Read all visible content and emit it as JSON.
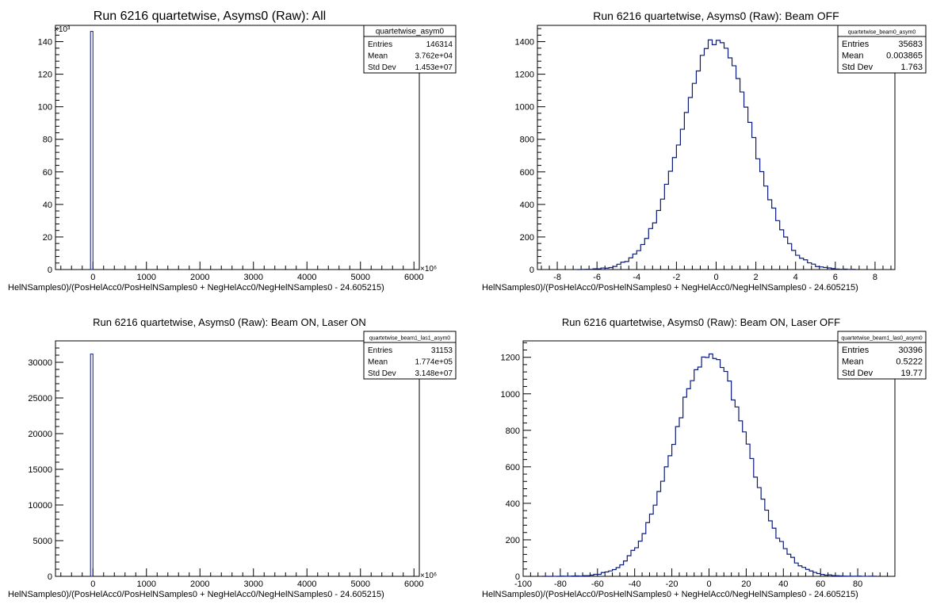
{
  "chart_data": [
    {
      "type": "histogram",
      "title": "Run 6216 quartetwise, Asyms0 (Raw): All",
      "xlabel": "HelNSamples0)/(PosHelAcc0/PosHelNSamples0 + NegHelAcc0/NegHelNSamples0 - 24.605215)",
      "ylabel": "",
      "x_multiplier": "×10⁶",
      "y_multiplier": "×10³",
      "xlim": [
        -700,
        6100
      ],
      "ylim": [
        0,
        150
      ],
      "x_ticks": [
        0,
        1000,
        2000,
        3000,
        4000,
        5000,
        6000
      ],
      "y_ticks": [
        0,
        20,
        40,
        60,
        80,
        100,
        120,
        140
      ],
      "bins": [
        {
          "x0": -45,
          "x1": 0,
          "y": 146.3
        }
      ],
      "stats": {
        "name": "quartetwise_asym0",
        "rows": [
          {
            "label": "Entries",
            "value": "146314"
          },
          {
            "label": "Mean",
            "value": "3.762e+04"
          },
          {
            "label": "Std Dev",
            "value": "1.453e+07"
          }
        ]
      }
    },
    {
      "type": "histogram",
      "title": "Run 6216 quartetwise, Asyms0 (Raw): Beam OFF",
      "xlabel": "HelNSamples0)/(PosHelAcc0/PosHelNSamples0 + NegHelAcc0/NegHelNSamples0 - 24.605215)",
      "ylabel": "",
      "xlim": [
        -9,
        9
      ],
      "ylim": [
        0,
        1500
      ],
      "x_ticks": [
        -8,
        -6,
        -4,
        -2,
        0,
        2,
        4,
        6,
        8
      ],
      "y_ticks": [
        0,
        200,
        400,
        600,
        800,
        1000,
        1200,
        1400
      ],
      "gauss": {
        "mean": 0.003865,
        "sigma": 1.763,
        "peak": 1410,
        "bin_width": 0.2,
        "x_from": -7,
        "x_to": 7
      },
      "stats": {
        "name": "quartetwise_beam0_asym0",
        "rows": [
          {
            "label": "Entries",
            "value": "35683"
          },
          {
            "label": "Mean",
            "value": "0.003865"
          },
          {
            "label": "Std Dev",
            "value": "1.763"
          }
        ]
      }
    },
    {
      "type": "histogram",
      "title": "Run 6216 quartetwise, Asyms0 (Raw): Beam ON, Laser ON",
      "xlabel": "HelNSamples0)/(PosHelAcc0/PosHelNSamples0 + NegHelAcc0/NegHelNSamples0 - 24.605215)",
      "ylabel": "",
      "x_multiplier": "×10⁶",
      "xlim": [
        -700,
        6100
      ],
      "ylim": [
        0,
        33000
      ],
      "x_ticks": [
        0,
        1000,
        2000,
        3000,
        4000,
        5000,
        6000
      ],
      "y_ticks": [
        0,
        5000,
        10000,
        15000,
        20000,
        25000,
        30000
      ],
      "bins": [
        {
          "x0": -45,
          "x1": 0,
          "y": 31153
        }
      ],
      "stats": {
        "name": "quartetwise_beam1_las1_asym0",
        "rows": [
          {
            "label": "Entries",
            "value": "31153"
          },
          {
            "label": "Mean",
            "value": "1.774e+05"
          },
          {
            "label": "Std Dev",
            "value": "3.148e+07"
          }
        ]
      }
    },
    {
      "type": "histogram",
      "title": "Run 6216 quartetwise, Asyms0 (Raw): Beam ON, Laser OFF",
      "xlabel": "HelNSamples0)/(PosHelAcc0/PosHelNSamples0 + NegHelAcc0/NegHelNSamples0 - 24.605215)",
      "ylabel": "",
      "xlim": [
        -100,
        100
      ],
      "ylim": [
        0,
        1290
      ],
      "x_ticks": [
        -100,
        -80,
        -60,
        -40,
        -20,
        0,
        20,
        40,
        60,
        80
      ],
      "y_ticks": [
        0,
        200,
        400,
        600,
        800,
        1000,
        1200
      ],
      "gauss": {
        "mean": 0.5222,
        "sigma": 19.77,
        "peak": 1210,
        "bin_width": 2,
        "x_from": -90,
        "x_to": 90
      },
      "stats": {
        "name": "quartetwise_beam1_las0_asym0",
        "rows": [
          {
            "label": "Entries",
            "value": "30396"
          },
          {
            "label": "Mean",
            "value": "0.5222"
          },
          {
            "label": "Std Dev",
            "value": "19.77"
          }
        ]
      }
    }
  ]
}
